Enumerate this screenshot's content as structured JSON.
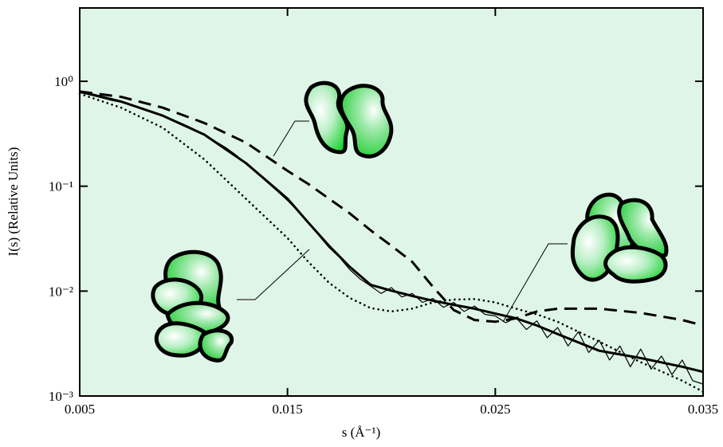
{
  "chart_data": {
    "type": "line",
    "xlabel": "s (Å⁻¹)",
    "ylabel": "I(s)   (Relative Units)",
    "log_y": true,
    "background": "#dff5e8",
    "xlim": [
      0.005,
      0.035
    ],
    "xticks": [
      0.005,
      0.015,
      0.025,
      0.035
    ],
    "ylim": [
      0.001,
      5
    ],
    "yticks": [
      {
        "value": 1,
        "label": "10⁰"
      },
      {
        "value": 0.1,
        "label": "10⁻¹"
      },
      {
        "value": 0.01,
        "label": "10⁻²"
      },
      {
        "value": 0.001,
        "label": "10⁻³"
      }
    ],
    "series": [
      {
        "color": "#000000",
        "style": "thin",
        "x": [
          0.005,
          0.0055,
          0.006,
          0.0065,
          0.007,
          0.0075,
          0.008,
          0.0085,
          0.009,
          0.0095,
          0.01,
          0.0105,
          0.011,
          0.0115,
          0.012,
          0.0125,
          0.013,
          0.0135,
          0.014,
          0.0145,
          0.015,
          0.0155,
          0.016,
          0.0165,
          0.017,
          0.0175,
          0.018,
          0.0185,
          0.019,
          0.0195,
          0.02,
          0.0205,
          0.021,
          0.0215,
          0.022,
          0.0225,
          0.023,
          0.0235,
          0.024,
          0.0245,
          0.025,
          0.0255,
          0.026,
          0.0265,
          0.027,
          0.0275,
          0.028,
          0.0285,
          0.029,
          0.0295,
          0.03,
          0.0305,
          0.031,
          0.0315,
          0.032,
          0.0325,
          0.033,
          0.0335,
          0.034,
          0.0345,
          0.035
        ],
        "values": [
          0.78,
          0.74,
          0.7,
          0.66,
          0.63,
          0.59,
          0.55,
          0.51,
          0.47,
          0.43,
          0.39,
          0.35,
          0.31,
          0.27,
          0.235,
          0.2,
          0.165,
          0.135,
          0.11,
          0.09,
          0.073,
          0.058,
          0.045,
          0.034,
          0.026,
          0.021,
          0.016,
          0.013,
          0.0112,
          0.0095,
          0.0108,
          0.0088,
          0.0095,
          0.0078,
          0.0085,
          0.007,
          0.0078,
          0.0064,
          0.0072,
          0.006,
          0.0058,
          0.005,
          0.0056,
          0.0043,
          0.0052,
          0.0036,
          0.0045,
          0.003,
          0.0041,
          0.0026,
          0.0034,
          0.0022,
          0.003,
          0.0019,
          0.0028,
          0.0018,
          0.0024,
          0.0016,
          0.0022,
          0.0014,
          0.0013
        ]
      },
      {
        "color": "#000000",
        "style": "solid",
        "x": [
          0.005,
          0.007,
          0.009,
          0.011,
          0.013,
          0.015,
          0.016,
          0.017,
          0.018,
          0.019,
          0.02,
          0.021,
          0.022,
          0.023,
          0.024,
          0.025,
          0.026,
          0.027,
          0.028,
          0.03,
          0.032,
          0.034,
          0.035
        ],
        "values": [
          0.8,
          0.64,
          0.47,
          0.31,
          0.166,
          0.076,
          0.045,
          0.027,
          0.017,
          0.0115,
          0.0101,
          0.009,
          0.0081,
          0.0074,
          0.0068,
          0.0061,
          0.0055,
          0.0047,
          0.0039,
          0.0027,
          0.0023,
          0.0019,
          0.0017
        ]
      },
      {
        "color": "#000000",
        "style": "dashed",
        "x": [
          0.005,
          0.007,
          0.009,
          0.011,
          0.013,
          0.015,
          0.016,
          0.017,
          0.018,
          0.019,
          0.02,
          0.021,
          0.022,
          0.023,
          0.024,
          0.025,
          0.026,
          0.027,
          0.028,
          0.03,
          0.032,
          0.034,
          0.035
        ],
        "values": [
          0.8,
          0.71,
          0.56,
          0.4,
          0.26,
          0.14,
          0.105,
          0.076,
          0.055,
          0.038,
          0.027,
          0.019,
          0.011,
          0.0066,
          0.0053,
          0.0051,
          0.0055,
          0.0064,
          0.0068,
          0.0068,
          0.0062,
          0.0053,
          0.0047
        ]
      },
      {
        "color": "#000000",
        "style": "dotted",
        "x": [
          0.005,
          0.007,
          0.009,
          0.011,
          0.013,
          0.015,
          0.016,
          0.017,
          0.018,
          0.019,
          0.02,
          0.021,
          0.022,
          0.023,
          0.024,
          0.025,
          0.026,
          0.027,
          0.028,
          0.03,
          0.032,
          0.034,
          0.035
        ],
        "values": [
          0.76,
          0.56,
          0.36,
          0.18,
          0.076,
          0.032,
          0.019,
          0.012,
          0.0086,
          0.0069,
          0.0064,
          0.0068,
          0.0078,
          0.0083,
          0.0084,
          0.0078,
          0.0068,
          0.006,
          0.0051,
          0.0033,
          0.0021,
          0.0014,
          0.0011
        ]
      }
    ]
  }
}
